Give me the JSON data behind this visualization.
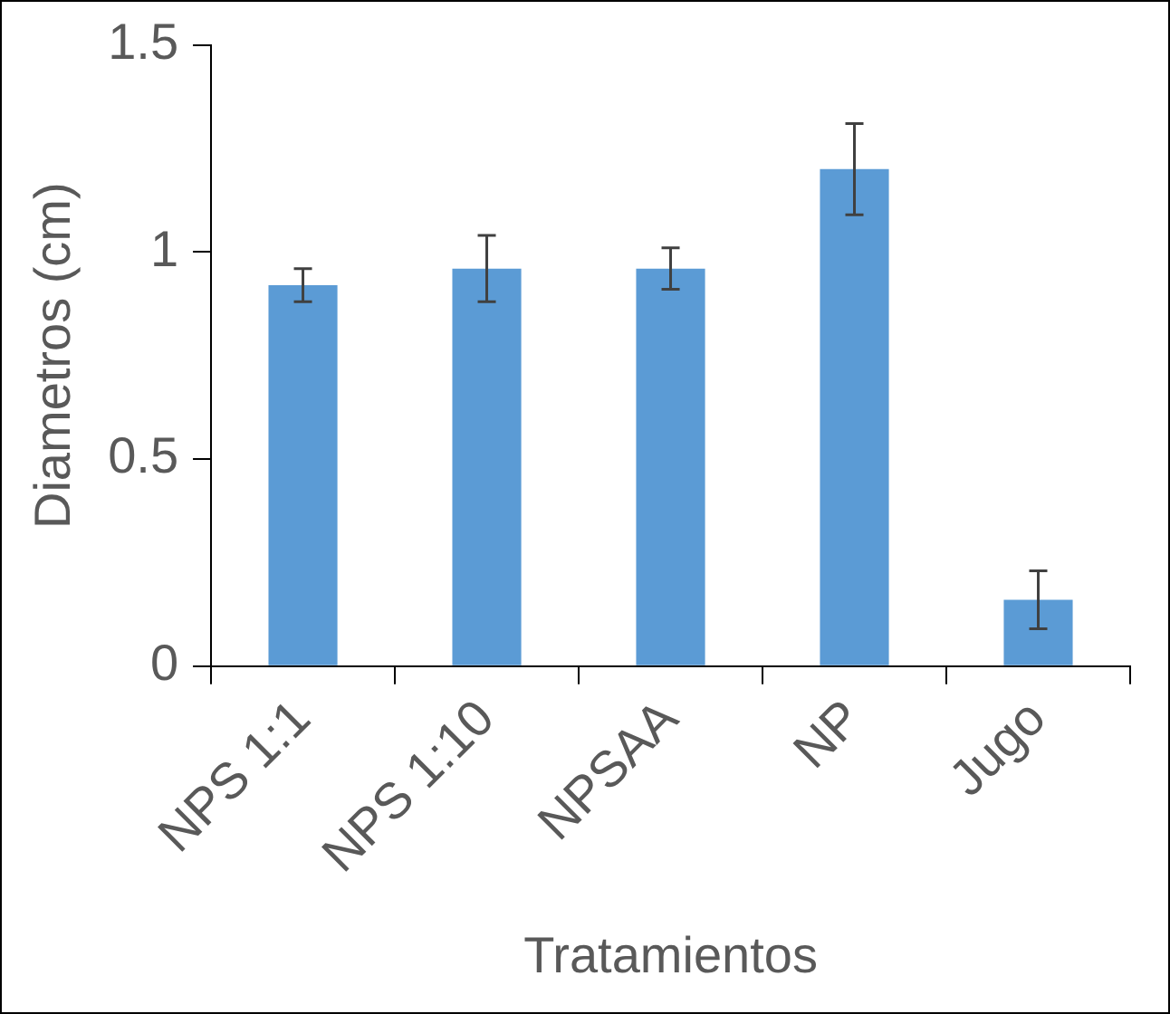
{
  "chart_data": {
    "type": "bar",
    "xlabel": "Tratamientos",
    "ylabel": "Diametros (cm)",
    "categories": [
      "NPS 1:1",
      "NPS 1:10",
      "NPSAA",
      "NP",
      "Jugo"
    ],
    "values": [
      0.92,
      0.96,
      0.96,
      1.2,
      0.16
    ],
    "errors": [
      0.04,
      0.08,
      0.05,
      0.11,
      0.07
    ],
    "color": "#5b9bd5",
    "ylim": [
      0,
      1.5
    ],
    "yticks": [
      0,
      0.5,
      1,
      1.5
    ],
    "grid": false,
    "legend": false
  }
}
